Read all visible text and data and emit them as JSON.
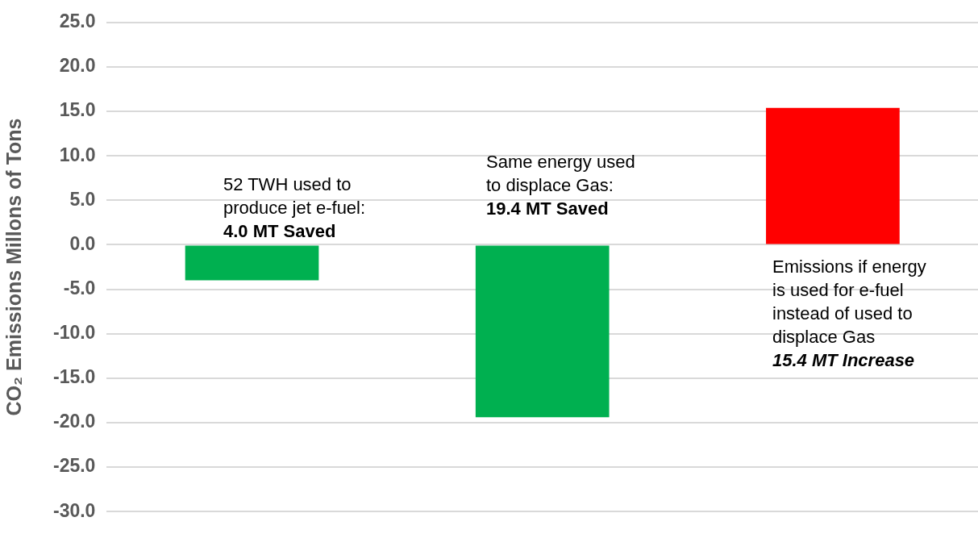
{
  "chart_data": {
    "type": "bar",
    "ylabel": "CO₂ Emissions Millons of Tons",
    "categories": [
      null,
      null,
      null
    ],
    "values": [
      -4.0,
      -19.4,
      15.4
    ],
    "colors": [
      "#00b050",
      "#00b050",
      "#ff0000"
    ],
    "ylim": [
      -30,
      25
    ],
    "yticks": [
      {
        "value": -30,
        "label": "-30.0"
      },
      {
        "value": -25,
        "label": "-25.0"
      },
      {
        "value": -20,
        "label": "-20.0"
      },
      {
        "value": -15,
        "label": "-15.0"
      },
      {
        "value": -10,
        "label": "-10.0"
      },
      {
        "value": -5,
        "label": "-5.0"
      },
      {
        "value": 0,
        "label": "0.0"
      },
      {
        "value": 5,
        "label": "5.0"
      },
      {
        "value": 10,
        "label": "10.0"
      },
      {
        "value": 15,
        "label": "15.0"
      },
      {
        "value": 20,
        "label": "20.0"
      },
      {
        "value": 25,
        "label": "25.0"
      }
    ],
    "grid": "y",
    "legend": false,
    "annotations": [
      "52 TWH used to\nproduce jet e-fuel:",
      "4.0 MT Saved",
      "Same energy used\nto displace Gas:",
      "19.4 MT Saved",
      "Emissions if energy\nis used for e-fuel\ninstead of used to\ndisplace Gas",
      "15.4 MT Increase"
    ]
  }
}
